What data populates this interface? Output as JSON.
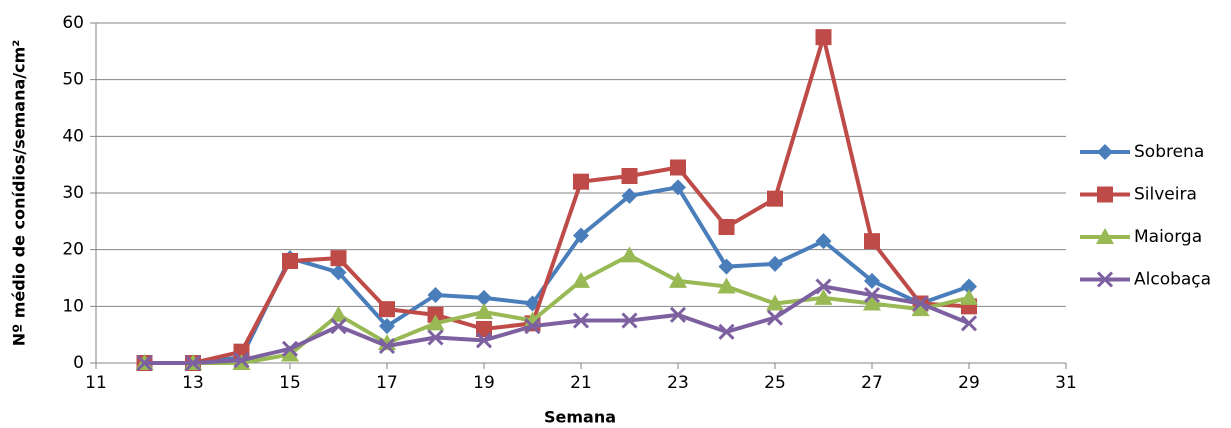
{
  "chart_data": {
    "type": "line",
    "x_label": "Semana",
    "y_label": "Nº médio de conídios/semana/cm²",
    "x": [
      12,
      13,
      14,
      15,
      16,
      17,
      18,
      19,
      20,
      21,
      22,
      23,
      24,
      25,
      26,
      27,
      28,
      29
    ],
    "series": [
      {
        "name": "Sobrena",
        "color": "#4a7ebb",
        "marker": "diamond",
        "values": [
          0,
          0,
          1,
          18.5,
          16,
          6.5,
          12,
          11.5,
          10.5,
          22.5,
          29.5,
          31,
          17,
          17.5,
          21.5,
          14.5,
          10.5,
          13.5
        ]
      },
      {
        "name": "Silveira",
        "color": "#be4b48",
        "marker": "square",
        "values": [
          0,
          0,
          2,
          18,
          18.5,
          9.5,
          8.5,
          6,
          7,
          32,
          33,
          34.5,
          24,
          29,
          57.5,
          21.5,
          10.5,
          10
        ]
      },
      {
        "name": "Maiorga",
        "color": "#98b954",
        "marker": "triangle",
        "values": [
          0,
          0,
          0,
          1.5,
          8.5,
          3.5,
          7,
          9,
          7.5,
          14.5,
          19,
          14.5,
          13.5,
          10.5,
          11.5,
          10.5,
          9.5,
          11.5
        ]
      },
      {
        "name": "Alcobaça",
        "color": "#7d60a0",
        "marker": "x",
        "values": [
          0,
          0,
          0.5,
          2.5,
          6.5,
          3,
          4.5,
          4,
          6.5,
          7.5,
          7.5,
          8.5,
          5.5,
          8,
          13.5,
          12,
          10.5,
          7
        ]
      }
    ],
    "xlim": [
      11,
      31
    ],
    "xticks": [
      11,
      13,
      15,
      17,
      19,
      21,
      23,
      25,
      27,
      29,
      31
    ],
    "ylim": [
      0,
      60
    ],
    "yticks": [
      0,
      10,
      20,
      30,
      40,
      50,
      60
    ],
    "grid": true,
    "legend": "right"
  }
}
